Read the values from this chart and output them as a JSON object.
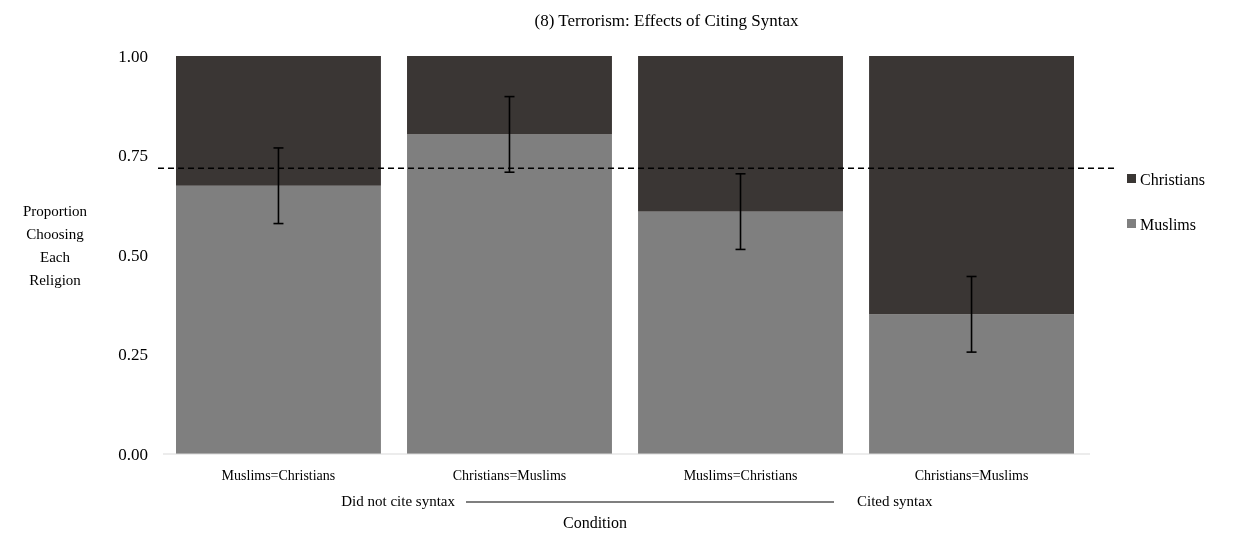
{
  "chart_data": {
    "type": "bar",
    "title": "(8) Terrorism: Effects of Citing Syntax",
    "xlabel": "Condition",
    "ylabel": "Proportion Choosing Each Religion",
    "categories": [
      "Muslims=Christians",
      "Christians=Muslims",
      "Muslims=Christians",
      "Christians=Muslims"
    ],
    "stacked": true,
    "series": [
      {
        "name": "Muslims",
        "color": "#7f7f7f",
        "values": [
          0.674,
          0.803,
          0.609,
          0.351
        ],
        "errors": [
          0.095,
          0.095,
          0.095,
          0.095
        ]
      },
      {
        "name": "Christians",
        "color": "#3a3634",
        "values": [
          0.326,
          0.197,
          0.391,
          0.649
        ]
      }
    ],
    "ylim": [
      0,
      1
    ],
    "yticks": [
      {
        "value": 0,
        "label": "0.00"
      },
      {
        "value": 0.25,
        "label": "0.25"
      },
      {
        "value": 0.5,
        "label": "0.50"
      },
      {
        "value": 0.75,
        "label": "0.75"
      },
      {
        "value": 1,
        "label": "1.00"
      }
    ],
    "ref_lines": [
      {
        "axis": "y",
        "value": 0.718,
        "line_style": "dashed",
        "color": "#000000"
      }
    ],
    "annotations": [
      "Did not cite syntax",
      "Cited syntax"
    ],
    "legend": "right",
    "grid": false
  }
}
